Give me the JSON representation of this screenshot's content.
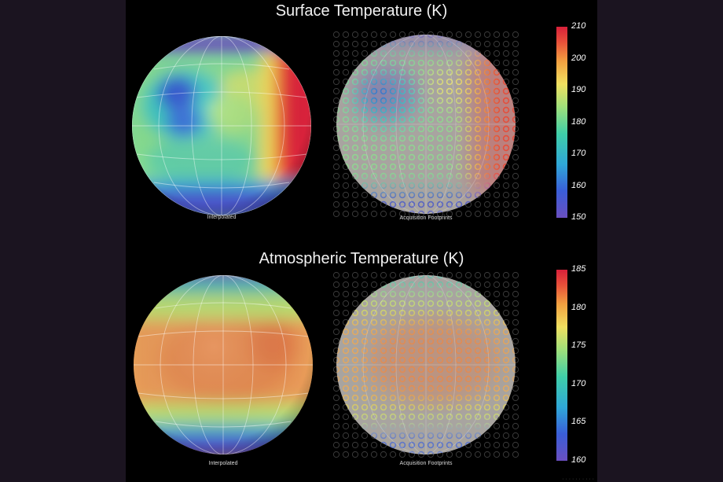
{
  "panels": [
    {
      "title": "Surface  Temperature (K)",
      "left_caption": "Interpolated",
      "right_caption": "Acquisition Footprints",
      "scale_ticks": [
        "210",
        "200",
        "190",
        "180",
        "170",
        "160",
        "150"
      ],
      "scale_range": [
        150,
        210
      ]
    },
    {
      "title": "Atmospheric Temperature (K)",
      "left_caption": "Interpolated",
      "right_caption": "Acquisition Footprints",
      "scale_ticks": [
        "185",
        "180",
        "175",
        "170",
        "165",
        "160"
      ],
      "scale_range": [
        160,
        185
      ]
    }
  ],
  "colors": {
    "scale": [
      "#6a4fc0",
      "#3a5ed8",
      "#2fa8d8",
      "#3fcfa8",
      "#9fe07a",
      "#f0e060",
      "#f2a040",
      "#e8503a",
      "#d8203a"
    ]
  }
}
